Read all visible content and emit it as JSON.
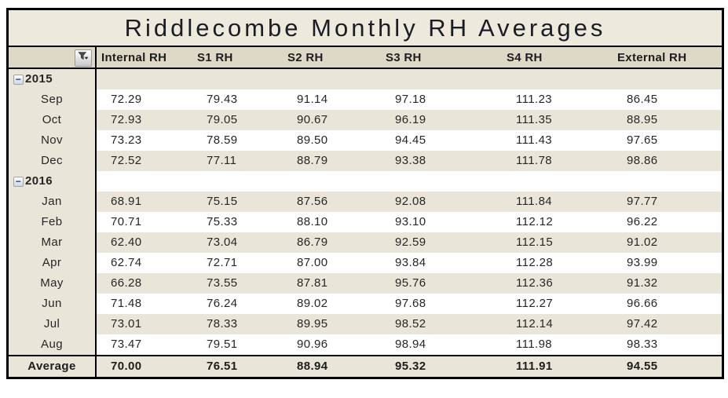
{
  "title": "Riddlecombe Monthly RH Averages",
  "columns": [
    "Internal RH",
    "S1 RH",
    "S2 RH",
    "S3 RH",
    "S4 RH",
    "External RH"
  ],
  "icons": {
    "filter": "funnel-filter-icon",
    "collapse_glyph": "−"
  },
  "rows": [
    {
      "type": "year",
      "label": "2015",
      "values": [
        "",
        "",
        "",
        "",
        "",
        ""
      ]
    },
    {
      "type": "month",
      "label": "Sep",
      "values": [
        "72.29",
        "79.43",
        "91.14",
        "97.18",
        "111.23",
        "86.45"
      ]
    },
    {
      "type": "month",
      "label": "Oct",
      "values": [
        "72.93",
        "79.05",
        "90.67",
        "96.19",
        "111.35",
        "88.95"
      ]
    },
    {
      "type": "month",
      "label": "Nov",
      "values": [
        "73.23",
        "78.59",
        "89.50",
        "94.45",
        "111.43",
        "97.65"
      ]
    },
    {
      "type": "month",
      "label": "Dec",
      "values": [
        "72.52",
        "77.11",
        "88.79",
        "93.38",
        "111.78",
        "98.86"
      ]
    },
    {
      "type": "year",
      "label": "2016",
      "values": [
        "",
        "",
        "",
        "",
        "",
        ""
      ]
    },
    {
      "type": "month",
      "label": "Jan",
      "values": [
        "68.91",
        "75.15",
        "87.56",
        "92.08",
        "111.84",
        "97.77"
      ]
    },
    {
      "type": "month",
      "label": "Feb",
      "values": [
        "70.71",
        "75.33",
        "88.10",
        "93.10",
        "112.12",
        "96.22"
      ]
    },
    {
      "type": "month",
      "label": "Mar",
      "values": [
        "62.40",
        "73.04",
        "86.79",
        "92.59",
        "112.15",
        "91.02"
      ]
    },
    {
      "type": "month",
      "label": "Apr",
      "values": [
        "62.74",
        "72.71",
        "87.00",
        "93.84",
        "112.28",
        "93.99"
      ]
    },
    {
      "type": "month",
      "label": "May",
      "values": [
        "66.28",
        "73.55",
        "87.81",
        "95.76",
        "112.36",
        "91.32"
      ]
    },
    {
      "type": "month",
      "label": "Jun",
      "values": [
        "71.48",
        "76.24",
        "89.02",
        "97.68",
        "112.27",
        "96.66"
      ]
    },
    {
      "type": "month",
      "label": "Jul",
      "values": [
        "73.01",
        "78.33",
        "89.95",
        "98.52",
        "112.14",
        "97.42"
      ]
    },
    {
      "type": "month",
      "label": "Aug",
      "values": [
        "73.47",
        "79.51",
        "90.96",
        "98.94",
        "111.98",
        "98.33"
      ]
    }
  ],
  "average": {
    "label": "Average",
    "values": [
      "70.00",
      "76.51",
      "88.94",
      "95.32",
      "111.91",
      "94.55"
    ]
  },
  "colors": {
    "title_bg": "#edeadd",
    "header_bg": "#ded9c6",
    "stripe_bg": "#e9e6d9",
    "border": "#000000",
    "collapse_blue": "#1f3f77"
  }
}
